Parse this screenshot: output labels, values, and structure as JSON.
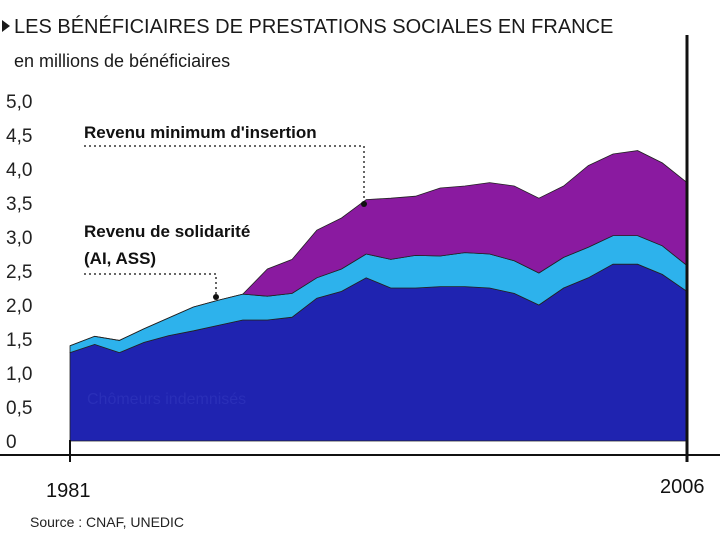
{
  "header": {
    "title": "LES BÉNÉFICIAIRES DE PRESTATIONS SOCIALES EN FRANCE",
    "subtitle": "en millions de bénéficiaires"
  },
  "source": "Source : CNAF, UNEDIC",
  "colors": {
    "chomeurs": "#1f23b0",
    "solidarite": "#2db2ec",
    "rmi": "#8a1aa0",
    "axis": "#111111",
    "leader": "#333333"
  },
  "chart_data": {
    "type": "area",
    "stacked": true,
    "title": "LES BÉNÉFICIAIRES DE PRESTATIONS SOCIALES EN FRANCE",
    "ylabel": "en millions de bénéficiaires",
    "xlabel": "",
    "x": [
      1981,
      1982,
      1983,
      1984,
      1985,
      1986,
      1987,
      1988,
      1989,
      1990,
      1991,
      1992,
      1993,
      1994,
      1995,
      1996,
      1997,
      1998,
      1999,
      2000,
      2001,
      2002,
      2003,
      2004,
      2005,
      2006
    ],
    "x_tick_labels": [
      "1981",
      "2006"
    ],
    "ylim": [
      0,
      5.0
    ],
    "y_ticks": [
      "0",
      "0,5",
      "1,0",
      "1,5",
      "2,0",
      "2,5",
      "3,0",
      "3,5",
      "4,0",
      "4,5",
      "5,0"
    ],
    "grid": false,
    "series": [
      {
        "name": "Chômeurs indemnisés",
        "color": "#1f23b0",
        "values": [
          1.3,
          1.42,
          1.3,
          1.45,
          1.55,
          1.62,
          1.7,
          1.78,
          1.78,
          1.82,
          2.1,
          2.2,
          2.4,
          2.25,
          2.25,
          2.27,
          2.27,
          2.25,
          2.17,
          2.0,
          2.25,
          2.4,
          2.6,
          2.6,
          2.45,
          2.2
        ]
      },
      {
        "name": "Revenu de solidarité (AI, ASS)",
        "color": "#2db2ec",
        "values": [
          0.1,
          0.12,
          0.18,
          0.2,
          0.26,
          0.35,
          0.37,
          0.38,
          0.35,
          0.35,
          0.3,
          0.33,
          0.35,
          0.42,
          0.48,
          0.45,
          0.5,
          0.5,
          0.48,
          0.47,
          0.45,
          0.45,
          0.42,
          0.42,
          0.42,
          0.38
        ]
      },
      {
        "name": "Revenu minimum d'insertion",
        "color": "#8a1aa0",
        "values": [
          0,
          0,
          0,
          0,
          0,
          0,
          0,
          0,
          0.4,
          0.5,
          0.7,
          0.75,
          0.8,
          0.9,
          0.87,
          1.0,
          0.98,
          1.05,
          1.1,
          1.1,
          1.05,
          1.2,
          1.2,
          1.25,
          1.22,
          1.22
        ]
      }
    ],
    "legend_labels": {
      "rmi": "Revenu minimum d'insertion",
      "solidarite_line1": "Revenu de solidarité",
      "solidarite_line2": "(AI, ASS)",
      "chomeurs": "Chômeurs indemnisés"
    },
    "legend_placement": "inline labels with dotted leaders"
  }
}
